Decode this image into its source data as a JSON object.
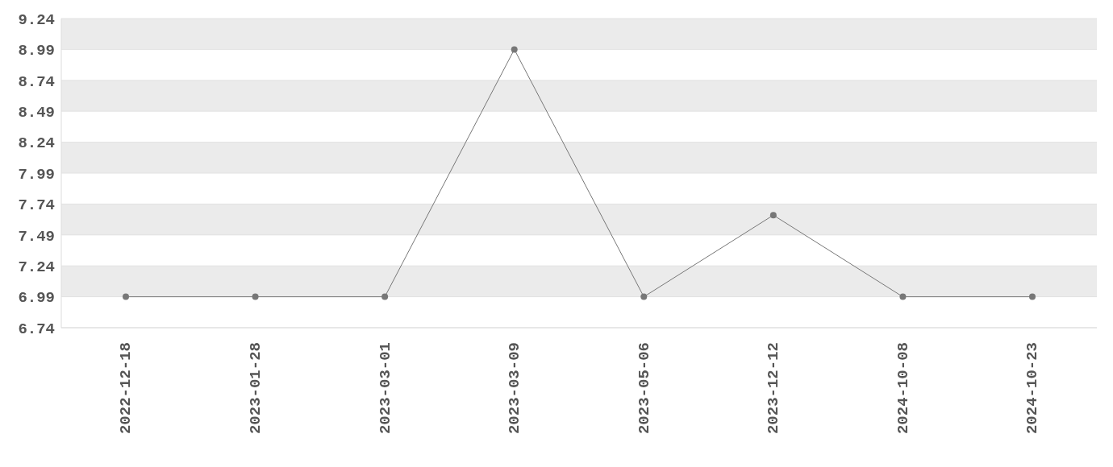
{
  "chart_data": {
    "type": "line",
    "categories": [
      "2022-12-18",
      "2023-01-28",
      "2023-03-01",
      "2023-03-09",
      "2023-05-06",
      "2023-12-12",
      "2024-10-08",
      "2024-10-23"
    ],
    "series": [
      {
        "color": "#777777",
        "values": [
          6.99,
          6.99,
          6.99,
          8.99,
          6.99,
          7.65,
          6.99,
          6.99
        ]
      }
    ],
    "ylim": [
      6.74,
      9.24
    ],
    "yticks": [
      6.74,
      6.99,
      7.24,
      7.49,
      7.74,
      7.99,
      8.24,
      8.49,
      8.74,
      8.99,
      9.24
    ],
    "grid": "y",
    "marker": "circle",
    "line_style": "solid",
    "legend": false
  }
}
